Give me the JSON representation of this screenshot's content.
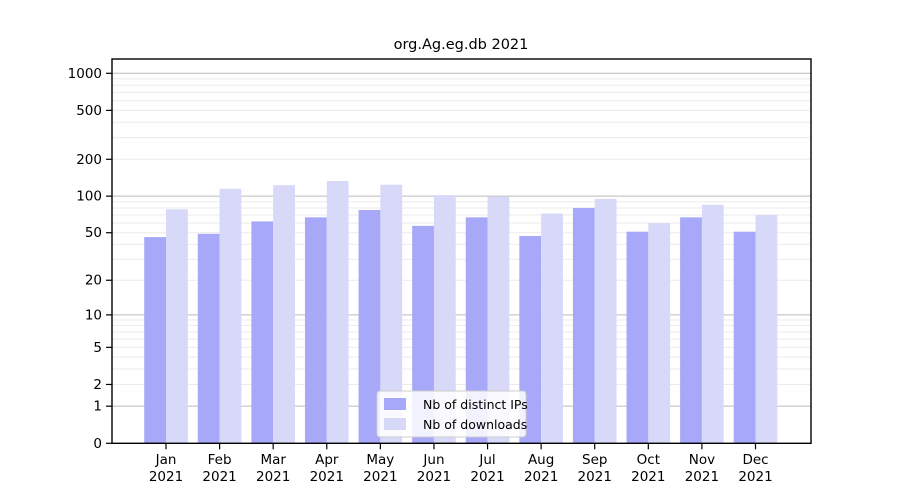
{
  "chart_data": {
    "type": "bar",
    "title": "org.Ag.eg.db 2021",
    "categories": [
      "Jan",
      "Feb",
      "Mar",
      "Apr",
      "May",
      "Jun",
      "Jul",
      "Aug",
      "Sep",
      "Oct",
      "Nov",
      "Dec"
    ],
    "category_year": "2021",
    "series": [
      {
        "name": "Nb of distinct IPs",
        "color": "#a8a8f8",
        "values": [
          46,
          49,
          62,
          67,
          77,
          57,
          67,
          47,
          80,
          51,
          67,
          51
        ]
      },
      {
        "name": "Nb of downloads",
        "color": "#d8d8f8",
        "values": [
          78,
          115,
          123,
          133,
          124,
          102,
          99,
          72,
          95,
          60,
          85,
          70
        ]
      }
    ],
    "xlabel": "",
    "ylabel": "",
    "y_axis": {
      "scale": "log1p",
      "ylim": [
        0,
        1000
      ],
      "ticks": [
        0,
        1,
        2,
        5,
        10,
        20,
        50,
        100,
        200,
        500,
        1000
      ],
      "major_gridlines": [
        1,
        10,
        100,
        1000
      ],
      "grid": true
    },
    "legend": {
      "position": "inside-bottom-center",
      "entries": [
        "Nb of distinct IPs",
        "Nb of downloads"
      ]
    },
    "colors": {
      "major_grid": "#bbbbbb",
      "minor_grid": "#ebebeb",
      "axis": "#000000",
      "legend_border": "#cccccc",
      "legend_bg": "rgba(255,255,255,0.85)"
    }
  }
}
